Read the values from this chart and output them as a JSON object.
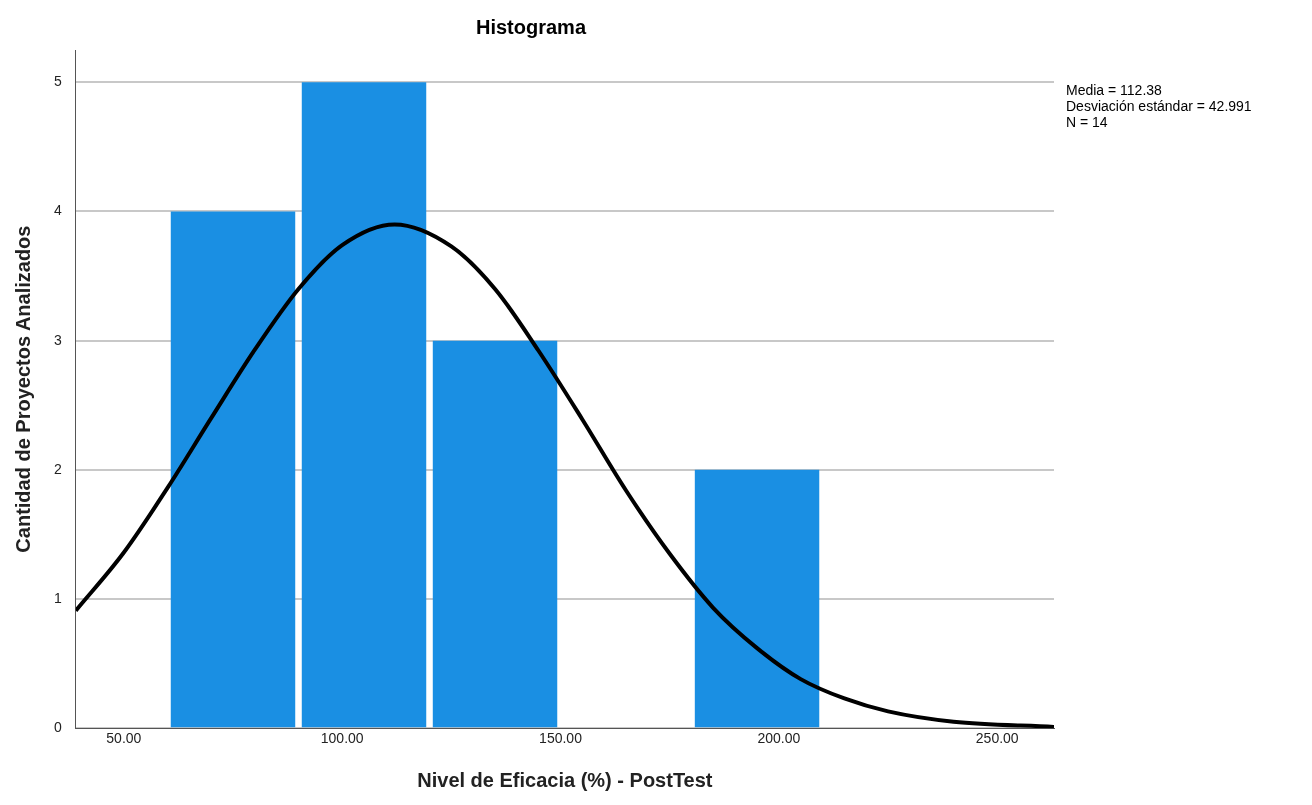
{
  "chart_data": {
    "type": "histogram",
    "title": "Histograma",
    "xlabel": "Nivel de Eficacia (%) - PostTest",
    "ylabel": "Cantidad de Proyectos Analizados",
    "bins": [
      60,
      90,
      120,
      150,
      180,
      210
    ],
    "values": [
      4,
      5,
      3,
      0,
      2
    ],
    "color": "#1a8fe3",
    "series": [
      {
        "type": "line",
        "color": "#000000",
        "x": [
          39,
          50,
          60,
          70,
          80,
          90,
          100,
          112,
          125,
          135,
          145,
          155,
          165,
          175,
          185,
          195,
          205,
          215,
          225,
          240,
          263
        ],
        "values": [
          0.91,
          1.36,
          1.86,
          2.4,
          2.93,
          3.4,
          3.74,
          3.9,
          3.73,
          3.4,
          2.92,
          2.39,
          1.84,
          1.35,
          0.93,
          0.62,
          0.38,
          0.23,
          0.13,
          0.05,
          0.01
        ]
      }
    ],
    "xlim": [
      39,
      263
    ],
    "xticks": [
      {
        "value": 50,
        "label": "50.00"
      },
      {
        "value": 100,
        "label": "100.00"
      },
      {
        "value": 150,
        "label": "150.00"
      },
      {
        "value": 200,
        "label": "200.00"
      },
      {
        "value": 250,
        "label": "250.00"
      }
    ],
    "ylim": [
      0,
      5.25
    ],
    "yticks": [
      0,
      1,
      2,
      3,
      4,
      5
    ],
    "grid": "y",
    "annotations": [
      "Media = 112.38",
      "Desviación estándar = 42.991",
      "N = 14"
    ]
  }
}
